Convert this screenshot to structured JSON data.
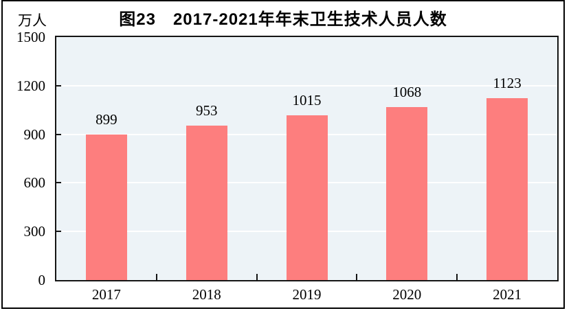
{
  "figure": {
    "title": "图23　2017-2021年年末卫生技术人员人数",
    "unit_label": "万人"
  },
  "colors": {
    "bar": "#fd7e7e",
    "plot_background": "#edf3f7",
    "gridline": "#ffffff",
    "axis_border": "#141414",
    "frame_border": "#000000",
    "text": "#000000"
  },
  "chart_data": {
    "type": "bar",
    "title": "图23　2017-2021年年末卫生技术人员人数",
    "unit_label": "万人",
    "categories": [
      "2017",
      "2018",
      "2019",
      "2020",
      "2021"
    ],
    "values": [
      899,
      953,
      1015,
      1068,
      1123
    ],
    "data_labels": [
      "899",
      "953",
      "1015",
      "1068",
      "1123"
    ],
    "xlabel": "",
    "ylabel": "万人",
    "ylim": [
      0,
      1500
    ],
    "yticks": [
      0,
      300,
      600,
      900,
      1200,
      1500
    ],
    "grid": true,
    "legend": false,
    "data_labels_shown": true
  }
}
